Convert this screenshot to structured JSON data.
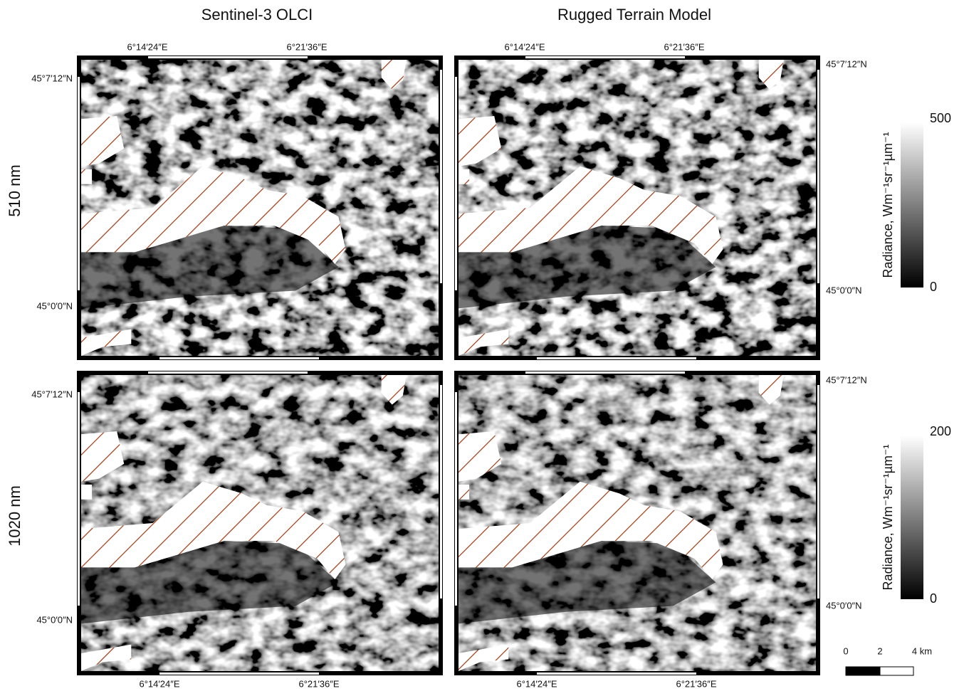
{
  "columns": [
    "Sentinel-3 OLCI",
    "Rugged Terrain Model"
  ],
  "rows": [
    "510 nm",
    "1020 nm"
  ],
  "longitude_labels": [
    "6°14′24″E",
    "6°21′36″E"
  ],
  "latitude_labels": [
    "45°7′12″N",
    "45°0′0″N"
  ],
  "colorbars": [
    {
      "label": "Radiance, Wm⁻¹sr⁻¹µm⁻¹",
      "max": 500,
      "min": 0
    },
    {
      "label": "Radiance, Wm⁻¹sr⁻¹µm⁻¹",
      "max": 200,
      "min": 0
    }
  ],
  "scale_bar": [
    "0",
    "2",
    "4 km"
  ]
}
